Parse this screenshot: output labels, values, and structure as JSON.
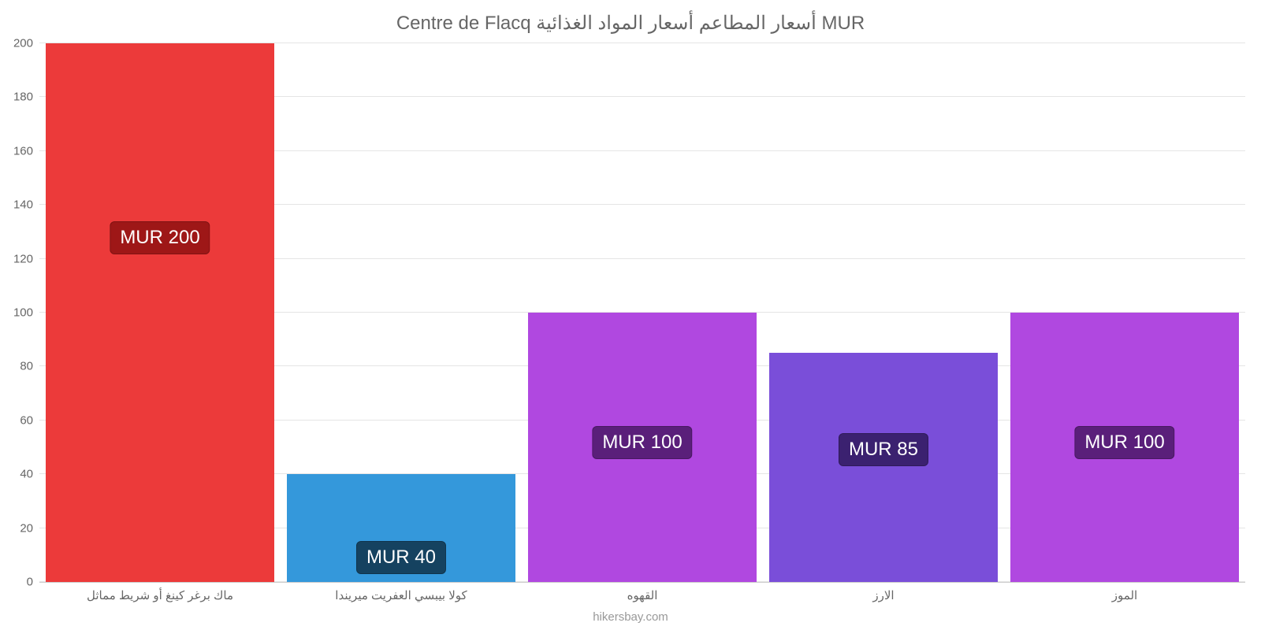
{
  "chart": {
    "type": "bar",
    "title": "Centre de Flacq أسعار المطاعم أسعار المواد الغذائية MUR",
    "title_fontsize": 24,
    "title_color": "#666666",
    "background_color": "#ffffff",
    "grid_color": "#e5e5e5",
    "axis_color": "#cccccc",
    "ylim": [
      0,
      200
    ],
    "ytick_step": 20,
    "yticks": [
      0,
      20,
      40,
      60,
      80,
      100,
      120,
      140,
      160,
      180,
      200
    ],
    "tick_fontsize": 15,
    "tick_color": "#666666",
    "bar_width": 0.95,
    "categories": [
      "ماك برغر كينغ أو شريط مماثل",
      "كولا بيبسي العفريت ميريندا",
      "القهوه",
      "الارز",
      "الموز"
    ],
    "values": [
      200,
      40,
      100,
      85,
      100
    ],
    "bar_colors": [
      "#ec3a3a",
      "#3498db",
      "#b048e0",
      "#7a4ed9",
      "#b048e0"
    ],
    "value_labels": [
      "MUR 200",
      "MUR 40",
      "MUR 100",
      "MUR 85",
      "MUR 100"
    ],
    "value_label_bg": [
      "#9e1717",
      "#154260",
      "#5a1f7a",
      "#3b2170",
      "#5a1f7a"
    ],
    "value_label_fontsize": 24,
    "value_label_color": "#ffffff",
    "value_label_offsets_pct": [
      33,
      62,
      42,
      35,
      42
    ],
    "attribution": "hikersbay.com",
    "attribution_color": "#999999"
  }
}
